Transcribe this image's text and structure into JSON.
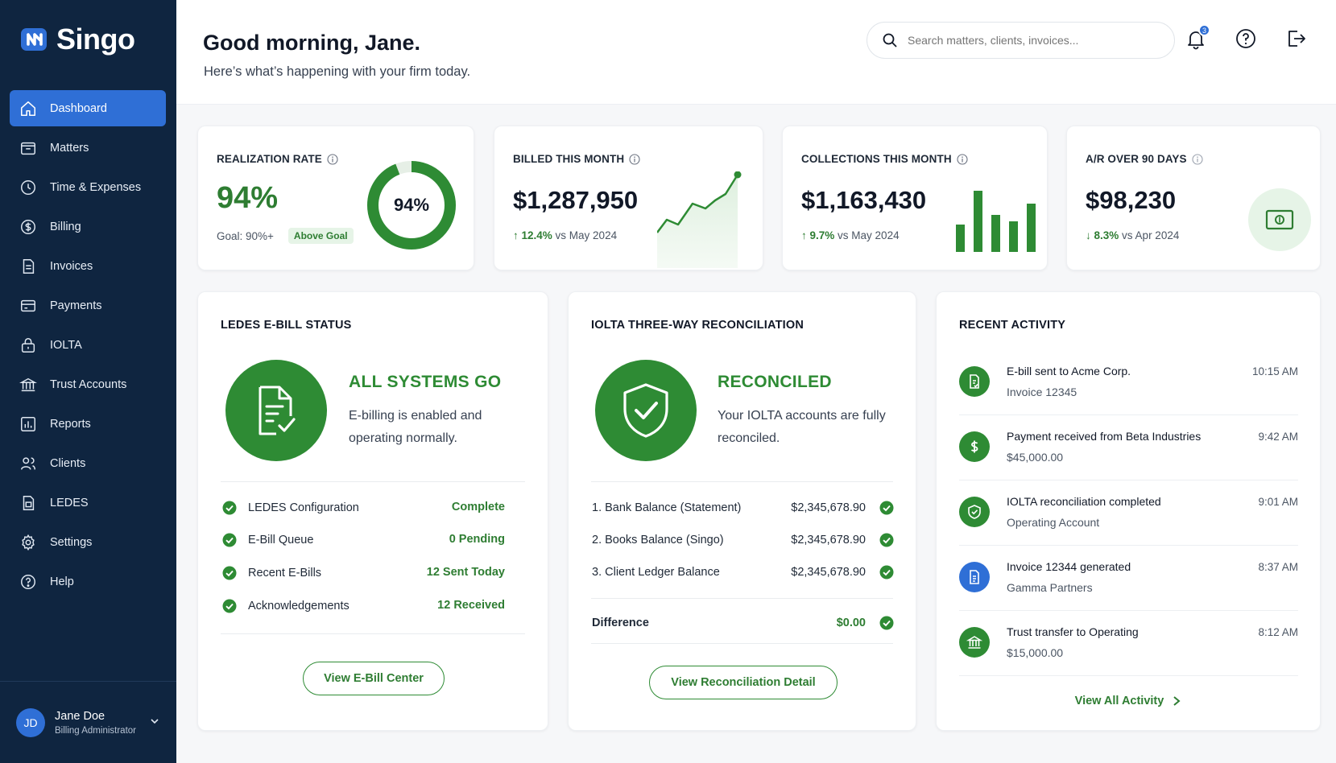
{
  "app": {
    "brand": "Singo"
  },
  "sidebar": {
    "items": [
      {
        "label": "Dashboard",
        "icon": "home-icon",
        "active": true
      },
      {
        "label": "Matters",
        "icon": "folder-icon"
      },
      {
        "label": "Time & Expenses",
        "icon": "clock-dollar-icon"
      },
      {
        "label": "Billing",
        "icon": "dollar-circle-icon"
      },
      {
        "label": "Invoices",
        "icon": "invoice-icon"
      },
      {
        "label": "Payments",
        "icon": "payment-icon"
      },
      {
        "label": "IOLTA",
        "icon": "lock-bag-icon"
      },
      {
        "label": "Trust Accounts",
        "icon": "bank-icon"
      },
      {
        "label": "Reports",
        "icon": "chart-icon"
      },
      {
        "label": "Clients",
        "icon": "users-icon"
      },
      {
        "label": "LEDES",
        "icon": "ledes-doc-icon"
      },
      {
        "label": "Settings",
        "icon": "gear-icon"
      },
      {
        "label": "Help",
        "icon": "help-icon"
      }
    ],
    "user": {
      "initials": "JD",
      "name": "Jane Doe",
      "role": "Billing Administrator"
    }
  },
  "header": {
    "greeting": "Good morning, Jane.",
    "subtitle": "Here’s what’s happening with your firm today.",
    "search_placeholder": "Search matters, clients, invoices...",
    "notification_count": "3"
  },
  "kpis": {
    "realization": {
      "title": "REALIZATION RATE",
      "value": "94%",
      "ring_label": "94%",
      "ring_fraction": 0.94,
      "goal": "Goal: 90%+",
      "badge": "Above Goal"
    },
    "billed": {
      "title": "BILLED THIS MONTH",
      "value": "$1,287,950",
      "delta": "12.4%",
      "delta_rest": " vs May 2024",
      "direction": "up"
    },
    "collections": {
      "title": "COLLECTIONS THIS MONTH",
      "value": "$1,163,430",
      "delta": "9.7%",
      "delta_rest": " vs May 2024",
      "direction": "up"
    },
    "ar": {
      "title": "A/R OVER 90 DAYS",
      "value": "$98,230",
      "delta": "8.3%",
      "delta_rest": " vs Apr 2024",
      "direction": "down"
    }
  },
  "ledes": {
    "title": "LEDES E-BILL STATUS",
    "status": "ALL SYSTEMS GO",
    "message": "E-billing is enabled and operating normally.",
    "rows": [
      {
        "label": "LEDES Configuration",
        "value": "Complete"
      },
      {
        "label": "E-Bill Queue",
        "value": "0 Pending"
      },
      {
        "label": "Recent E-Bills",
        "value": "12 Sent Today"
      },
      {
        "label": "Acknowledgements",
        "value": "12 Received"
      }
    ],
    "button": "View E-Bill Center"
  },
  "iolta": {
    "title": "IOLTA THREE-WAY RECONCILIATION",
    "status": "RECONCILED",
    "message": "Your IOLTA accounts are fully reconciled.",
    "rows": [
      {
        "label": "1. Bank Balance (Statement)",
        "value": "$2,345,678.90"
      },
      {
        "label": "2. Books Balance (Singo)",
        "value": "$2,345,678.90"
      },
      {
        "label": "3. Client Ledger Balance",
        "value": "$2,345,678.90"
      }
    ],
    "difference_label": "Difference",
    "difference_value": "$0.00",
    "button": "View Reconciliation Detail"
  },
  "activity": {
    "title": "RECENT ACTIVITY",
    "items": [
      {
        "title": "E-bill sent to Acme Corp.",
        "sub": "Invoice 12345",
        "time": "10:15 AM",
        "icon": "ebill-icon",
        "color": "#2e8b34"
      },
      {
        "title": "Payment received from Beta Industries",
        "sub": "$45,000.00",
        "time": "9:42 AM",
        "icon": "dollar-icon",
        "color": "#2e8b34"
      },
      {
        "title": "IOLTA reconciliation completed",
        "sub": "Operating Account",
        "time": "9:01 AM",
        "icon": "shield-icon",
        "color": "#2e8b34"
      },
      {
        "title": "Invoice 12344 generated",
        "sub": "Gamma Partners",
        "time": "8:37 AM",
        "icon": "document-icon",
        "color": "#2f6fd6"
      },
      {
        "title": "Trust transfer to Operating",
        "sub": "$15,000.00",
        "time": "8:12 AM",
        "icon": "bank-icon",
        "color": "#2e8b34"
      }
    ],
    "link": "View All Activity"
  },
  "colors": {
    "primary": "#2f6fd6",
    "success": "#2e8b34",
    "sidebar": "#0f2540"
  }
}
